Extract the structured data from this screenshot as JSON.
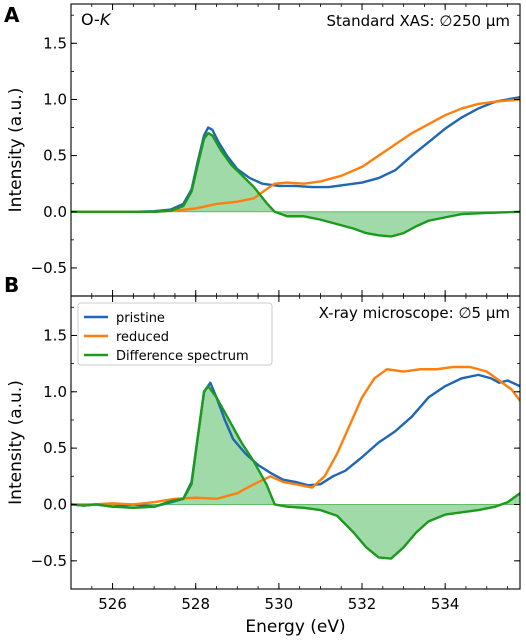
{
  "figure": {
    "xlabel": "Energy (eV)"
  },
  "colors": {
    "pristine": "#1f66b4",
    "reduced": "#ff7f0e",
    "difference": "#1c9a1c",
    "fill": "#8fd39a"
  },
  "chart_data": [
    {
      "panel": "A",
      "type": "line",
      "title": "O-K",
      "annotation": "Standard XAS: ∅250 µm",
      "xlabel": "",
      "ylabel": "Intensity (a.u.)",
      "xlim": [
        525.0,
        535.8
      ],
      "ylim": [
        -0.75,
        1.85
      ],
      "yticks": [
        -0.5,
        0.0,
        0.5,
        1.0,
        1.5
      ],
      "ytick_labels": [
        "−0.5",
        "0.0",
        "0.5",
        "1.0",
        "1.5"
      ],
      "grid": false,
      "legend": null,
      "series": [
        {
          "key": "pristine",
          "values": [
            [
              525,
              0
            ],
            [
              526,
              0
            ],
            [
              526.5,
              0
            ],
            [
              527,
              0.005
            ],
            [
              527.4,
              0.02
            ],
            [
              527.7,
              0.07
            ],
            [
              527.9,
              0.2
            ],
            [
              528.05,
              0.45
            ],
            [
              528.2,
              0.68
            ],
            [
              528.3,
              0.75
            ],
            [
              528.4,
              0.73
            ],
            [
              528.55,
              0.62
            ],
            [
              528.75,
              0.5
            ],
            [
              529,
              0.38
            ],
            [
              529.3,
              0.3
            ],
            [
              529.6,
              0.25
            ],
            [
              530,
              0.23
            ],
            [
              530.4,
              0.23
            ],
            [
              530.8,
              0.22
            ],
            [
              531.2,
              0.22
            ],
            [
              531.6,
              0.24
            ],
            [
              532,
              0.26
            ],
            [
              532.4,
              0.3
            ],
            [
              532.8,
              0.37
            ],
            [
              533.2,
              0.5
            ],
            [
              533.6,
              0.62
            ],
            [
              534,
              0.74
            ],
            [
              534.4,
              0.84
            ],
            [
              534.8,
              0.92
            ],
            [
              535.2,
              0.98
            ],
            [
              535.8,
              1.02
            ]
          ]
        },
        {
          "key": "reduced",
          "values": [
            [
              525,
              0
            ],
            [
              527,
              0
            ],
            [
              527.5,
              0.01
            ],
            [
              528,
              0.03
            ],
            [
              528.5,
              0.07
            ],
            [
              529,
              0.09
            ],
            [
              529.4,
              0.12
            ],
            [
              529.7,
              0.2
            ],
            [
              529.9,
              0.25
            ],
            [
              530.2,
              0.26
            ],
            [
              530.6,
              0.25
            ],
            [
              531,
              0.27
            ],
            [
              531.5,
              0.32
            ],
            [
              532,
              0.4
            ],
            [
              532.4,
              0.5
            ],
            [
              532.8,
              0.6
            ],
            [
              533.2,
              0.7
            ],
            [
              533.6,
              0.78
            ],
            [
              534,
              0.86
            ],
            [
              534.4,
              0.92
            ],
            [
              534.8,
              0.96
            ],
            [
              535.2,
              0.98
            ],
            [
              535.8,
              1.0
            ]
          ]
        },
        {
          "key": "difference",
          "values": [
            [
              525,
              0
            ],
            [
              527,
              0
            ],
            [
              527.4,
              0.01
            ],
            [
              527.7,
              0.05
            ],
            [
              527.9,
              0.18
            ],
            [
              528.05,
              0.42
            ],
            [
              528.2,
              0.65
            ],
            [
              528.3,
              0.7
            ],
            [
              528.4,
              0.68
            ],
            [
              528.6,
              0.55
            ],
            [
              528.85,
              0.42
            ],
            [
              529.1,
              0.33
            ],
            [
              529.4,
              0.22
            ],
            [
              529.7,
              0.08
            ],
            [
              529.9,
              0.0
            ],
            [
              530.2,
              -0.04
            ],
            [
              530.6,
              -0.04
            ],
            [
              531,
              -0.07
            ],
            [
              531.4,
              -0.11
            ],
            [
              531.8,
              -0.15
            ],
            [
              532.1,
              -0.19
            ],
            [
              532.4,
              -0.21
            ],
            [
              532.7,
              -0.22
            ],
            [
              533,
              -0.19
            ],
            [
              533.3,
              -0.13
            ],
            [
              533.6,
              -0.08
            ],
            [
              534,
              -0.05
            ],
            [
              534.4,
              -0.02
            ],
            [
              535,
              -0.01
            ],
            [
              535.8,
              0
            ]
          ]
        }
      ]
    },
    {
      "panel": "B",
      "type": "line",
      "title": "",
      "annotation": "X-ray microscope: ∅5 µm",
      "xlabel": "Energy (eV)",
      "ylabel": "Intensity (a.u.)",
      "xlim": [
        525.0,
        535.8
      ],
      "ylim": [
        -0.75,
        1.85
      ],
      "yticks": [
        -0.5,
        0.0,
        0.5,
        1.0,
        1.5
      ],
      "ytick_labels": [
        "−0.5",
        "0.0",
        "0.5",
        "1.0",
        "1.5"
      ],
      "xticks": [
        526,
        528,
        530,
        532,
        534
      ],
      "xtick_labels": [
        "526",
        "528",
        "530",
        "532",
        "534"
      ],
      "grid": false,
      "legend": {
        "placement": "top-left",
        "entries": [
          {
            "key": "pristine",
            "label": "pristine"
          },
          {
            "key": "reduced",
            "label": "reduced"
          },
          {
            "key": "difference",
            "label": "Difference spectrum"
          }
        ]
      },
      "series": [
        {
          "key": "pristine",
          "values": [
            [
              525,
              0.0
            ],
            [
              525.3,
              -0.01
            ],
            [
              525.6,
              0.0
            ],
            [
              526,
              -0.02
            ],
            [
              526.5,
              0.0
            ],
            [
              527,
              -0.02
            ],
            [
              527.4,
              0.02
            ],
            [
              527.7,
              0.05
            ],
            [
              527.9,
              0.2
            ],
            [
              528.05,
              0.6
            ],
            [
              528.2,
              1.0
            ],
            [
              528.35,
              1.08
            ],
            [
              528.5,
              0.95
            ],
            [
              528.7,
              0.75
            ],
            [
              528.9,
              0.58
            ],
            [
              529.2,
              0.45
            ],
            [
              529.5,
              0.35
            ],
            [
              529.8,
              0.28
            ],
            [
              530.1,
              0.22
            ],
            [
              530.4,
              0.2
            ],
            [
              530.7,
              0.17
            ],
            [
              531,
              0.18
            ],
            [
              531.3,
              0.25
            ],
            [
              531.6,
              0.3
            ],
            [
              532,
              0.42
            ],
            [
              532.4,
              0.55
            ],
            [
              532.8,
              0.65
            ],
            [
              533.2,
              0.78
            ],
            [
              533.6,
              0.95
            ],
            [
              534,
              1.05
            ],
            [
              534.4,
              1.12
            ],
            [
              534.8,
              1.15
            ],
            [
              535.1,
              1.12
            ],
            [
              535.3,
              1.08
            ],
            [
              535.5,
              1.1
            ],
            [
              535.8,
              1.05
            ]
          ]
        },
        {
          "key": "reduced",
          "values": [
            [
              525,
              0.0
            ],
            [
              525.5,
              0.0
            ],
            [
              526,
              0.01
            ],
            [
              526.5,
              0.0
            ],
            [
              527,
              0.02
            ],
            [
              527.5,
              0.05
            ],
            [
              528,
              0.06
            ],
            [
              528.5,
              0.05
            ],
            [
              529,
              0.1
            ],
            [
              529.4,
              0.18
            ],
            [
              529.8,
              0.25
            ],
            [
              530.1,
              0.2
            ],
            [
              530.4,
              0.18
            ],
            [
              530.8,
              0.15
            ],
            [
              531.1,
              0.25
            ],
            [
              531.4,
              0.45
            ],
            [
              531.7,
              0.7
            ],
            [
              532,
              0.95
            ],
            [
              532.3,
              1.12
            ],
            [
              532.6,
              1.2
            ],
            [
              533,
              1.18
            ],
            [
              533.4,
              1.2
            ],
            [
              533.8,
              1.2
            ],
            [
              534.2,
              1.22
            ],
            [
              534.6,
              1.22
            ],
            [
              535,
              1.18
            ],
            [
              535.3,
              1.1
            ],
            [
              535.6,
              1.02
            ],
            [
              535.8,
              0.92
            ]
          ]
        },
        {
          "key": "difference",
          "values": [
            [
              525,
              0
            ],
            [
              525.3,
              -0.01
            ],
            [
              525.6,
              0.0
            ],
            [
              526,
              -0.02
            ],
            [
              526.5,
              -0.03
            ],
            [
              527,
              -0.02
            ],
            [
              527.4,
              0.03
            ],
            [
              527.7,
              0.05
            ],
            [
              527.9,
              0.18
            ],
            [
              528.05,
              0.6
            ],
            [
              528.2,
              1.0
            ],
            [
              528.3,
              1.05
            ],
            [
              528.5,
              0.95
            ],
            [
              528.8,
              0.75
            ],
            [
              529.1,
              0.55
            ],
            [
              529.4,
              0.38
            ],
            [
              529.7,
              0.18
            ],
            [
              529.9,
              0.0
            ],
            [
              530.2,
              -0.02
            ],
            [
              530.6,
              -0.03
            ],
            [
              531,
              -0.05
            ],
            [
              531.4,
              -0.1
            ],
            [
              531.8,
              -0.25
            ],
            [
              532.1,
              -0.38
            ],
            [
              532.4,
              -0.47
            ],
            [
              532.7,
              -0.48
            ],
            [
              533,
              -0.38
            ],
            [
              533.3,
              -0.25
            ],
            [
              533.6,
              -0.15
            ],
            [
              534,
              -0.09
            ],
            [
              534.4,
              -0.07
            ],
            [
              534.8,
              -0.05
            ],
            [
              535.2,
              -0.02
            ],
            [
              535.5,
              0.02
            ],
            [
              535.8,
              0.1
            ]
          ]
        }
      ]
    }
  ]
}
